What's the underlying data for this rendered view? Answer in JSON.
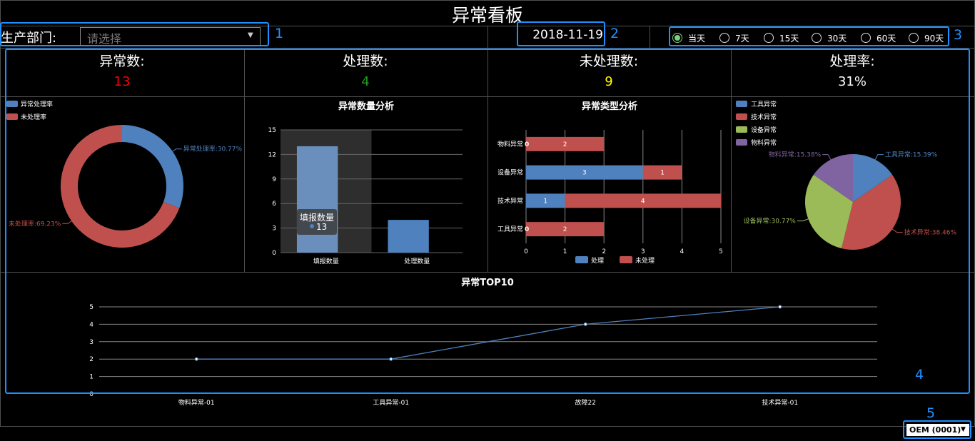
{
  "page_title": "异常看板",
  "filter": {
    "label": "生产部门:",
    "placeholder": "请选择"
  },
  "date": "2018-11-19",
  "periods": [
    {
      "label": "当天",
      "selected": true
    },
    {
      "label": "7天",
      "selected": false
    },
    {
      "label": "15天",
      "selected": false
    },
    {
      "label": "30天",
      "selected": false
    },
    {
      "label": "60天",
      "selected": false
    },
    {
      "label": "90天",
      "selected": false
    }
  ],
  "stats": [
    {
      "label": "异常数:",
      "value": "13",
      "color": "#ff0000"
    },
    {
      "label": "处理数:",
      "value": "4",
      "color": "#1f9d1f"
    },
    {
      "label": "未处理数:",
      "value": "9",
      "color": "#ffff00"
    },
    {
      "label": "处理率:",
      "value": "31%",
      "color": "#ffffff"
    }
  ],
  "callout_numbers": [
    "1",
    "2",
    "3",
    "4",
    "5"
  ],
  "footer_select": {
    "value": "OEM (0001)",
    "arrow": "▼"
  },
  "colors": {
    "blue": "#4e81bd",
    "red": "#c0504d",
    "green": "#9bbb59",
    "purple": "#8064a2",
    "callout": "#1e90ff"
  },
  "chart_data": [
    {
      "type": "pie",
      "variant": "donut",
      "legend": [
        "异常处理率",
        "未处理率"
      ],
      "labels": [
        "异常处理率",
        "未处理率"
      ],
      "values": [
        30.77,
        69.23
      ],
      "label_texts": [
        "异常处理率:30.77%",
        "未处理率:69.23%"
      ],
      "legend_position": "top-left"
    },
    {
      "type": "bar",
      "title": "异常数量分析",
      "categories": [
        "填报数量",
        "处理数量"
      ],
      "values": [
        13,
        4
      ],
      "ylim": [
        0,
        15
      ],
      "yticks": [
        "0",
        "3",
        "6",
        "9",
        "12",
        "15"
      ],
      "tooltip": {
        "title": "填报数量",
        "value": "13"
      }
    },
    {
      "type": "bar",
      "orientation": "horizontal",
      "stacked": true,
      "title": "异常类型分析",
      "categories": [
        "物料异常",
        "设备异常",
        "技术异常",
        "工具异常"
      ],
      "series": [
        {
          "name": "处理",
          "values": [
            0,
            3,
            1,
            0
          ],
          "labels": [
            "0",
            "3",
            "1",
            "0"
          ]
        },
        {
          "name": "未处理",
          "values": [
            2,
            1,
            4,
            2
          ],
          "labels": [
            "2",
            "1",
            "4",
            "2"
          ]
        }
      ],
      "xlim": [
        0,
        5
      ],
      "xticks": [
        "0",
        "1",
        "2",
        "3",
        "4",
        "5"
      ],
      "legend_position": "bottom"
    },
    {
      "type": "pie",
      "legend": [
        "工具异常",
        "技术异常",
        "设备异常",
        "物料异常"
      ],
      "labels": [
        "工具异常",
        "技术异常",
        "设备异常",
        "物料异常"
      ],
      "values": [
        15.39,
        38.46,
        30.77,
        15.38
      ],
      "label_texts": [
        "工具异常:15.39%",
        "技术异常:38.46%",
        "设备异常:30.77%",
        "物料异常:15.38%"
      ],
      "legend_position": "top-left"
    },
    {
      "type": "line",
      "title": "异常TOP10",
      "categories": [
        "物料异常-01",
        "工具异常-01",
        "故障22",
        "技术异常-01"
      ],
      "values": [
        2,
        2,
        4,
        5
      ],
      "ylim": [
        0,
        5
      ],
      "yticks": [
        "0",
        "1",
        "2",
        "3",
        "4",
        "5"
      ]
    }
  ]
}
